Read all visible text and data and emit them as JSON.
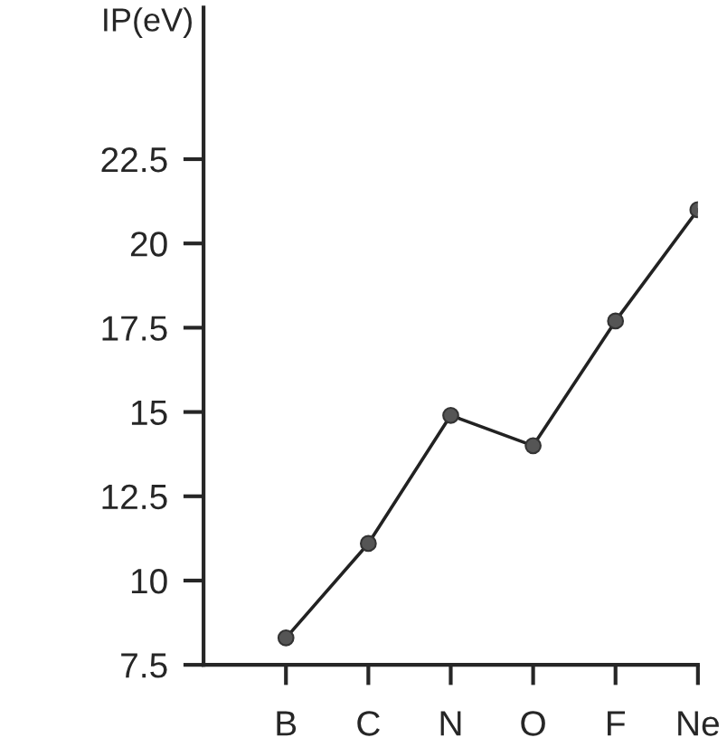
{
  "chart_data": {
    "type": "line",
    "ylabel": "IP(eV)",
    "categories": [
      "B",
      "C",
      "N",
      "O",
      "F",
      "Ne"
    ],
    "series": [
      {
        "color": "#555555",
        "values": [
          8.3,
          11.1,
          14.9,
          14.0,
          17.7,
          21.0
        ]
      }
    ],
    "ylim": [
      7.5,
      27
    ],
    "yticks": [
      7.5,
      10,
      12.5,
      15,
      17.5,
      20,
      22.5
    ],
    "marker": "circle",
    "line_style": "solid",
    "grid": false,
    "legend": false
  }
}
